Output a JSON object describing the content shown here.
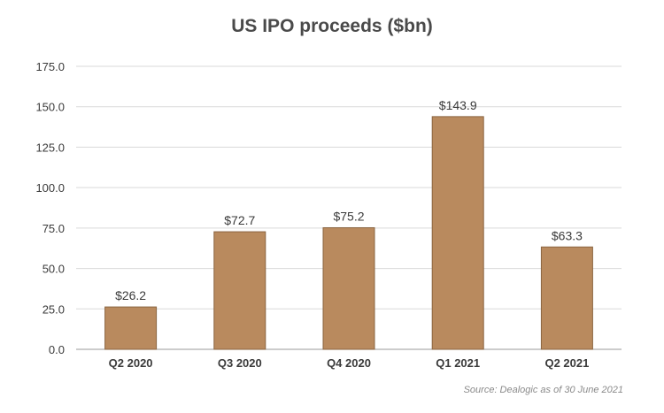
{
  "chart_data": {
    "type": "bar",
    "title": "US IPO proceeds ($bn)",
    "categories": [
      "Q2 2020",
      "Q3 2020",
      "Q4 2020",
      "Q1 2021",
      "Q2 2021"
    ],
    "values": [
      26.2,
      72.7,
      75.2,
      143.9,
      63.3
    ],
    "data_labels": [
      "$26.2",
      "$72.7",
      "$75.2",
      "$143.9",
      "$63.3"
    ],
    "ylim": [
      0,
      175
    ],
    "yticks": [
      "0.0",
      "25.0",
      "50.0",
      "75.0",
      "100.0",
      "125.0",
      "150.0",
      "175.0"
    ],
    "xlabel": "",
    "ylabel": "",
    "grid": true,
    "bar_color": "#b98a5e",
    "bar_edge_color": "#8a6440",
    "source": "Source: Dealogic as of 30 June 2021"
  }
}
